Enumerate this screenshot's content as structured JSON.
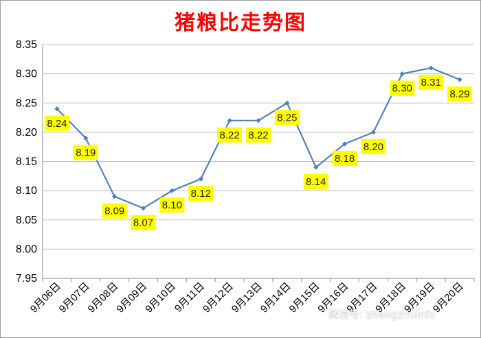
{
  "chart_data": {
    "type": "line",
    "title": "猪粮比走势图",
    "xlabel": "",
    "ylabel": "",
    "categories": [
      "9月06日",
      "9月07日",
      "9月08日",
      "9月09日",
      "9月10日",
      "9月11日",
      "9月12日",
      "9月13日",
      "9月14日",
      "9月15日",
      "9月16日",
      "9月17日",
      "9月18日",
      "9月19日",
      "9月20日"
    ],
    "series": [
      {
        "values": [
          8.24,
          8.19,
          8.09,
          8.07,
          8.1,
          8.12,
          8.22,
          8.22,
          8.25,
          8.14,
          8.18,
          8.2,
          8.3,
          8.31,
          8.29
        ]
      }
    ],
    "data_labels": [
      "8.24",
      "8.19",
      "8.09",
      "8.07",
      "8.10",
      "8.12",
      "8.22",
      "8.22",
      "8.25",
      "8.14",
      "8.18",
      "8.20",
      "8.30",
      "8.31",
      "8.29"
    ],
    "y_ticks": [
      "7.95",
      "8.00",
      "8.05",
      "8.10",
      "8.15",
      "8.20",
      "8.25",
      "8.30",
      "8.35"
    ],
    "ylim": [
      7.95,
      8.35
    ],
    "grid": true,
    "legend": "none",
    "colors": {
      "line": "#4f81bd",
      "label_bg": "#ffff00",
      "title": "#ff0000",
      "grid": "#bfbfbf"
    }
  },
  "watermark": "微信号: shengzhuinfo"
}
